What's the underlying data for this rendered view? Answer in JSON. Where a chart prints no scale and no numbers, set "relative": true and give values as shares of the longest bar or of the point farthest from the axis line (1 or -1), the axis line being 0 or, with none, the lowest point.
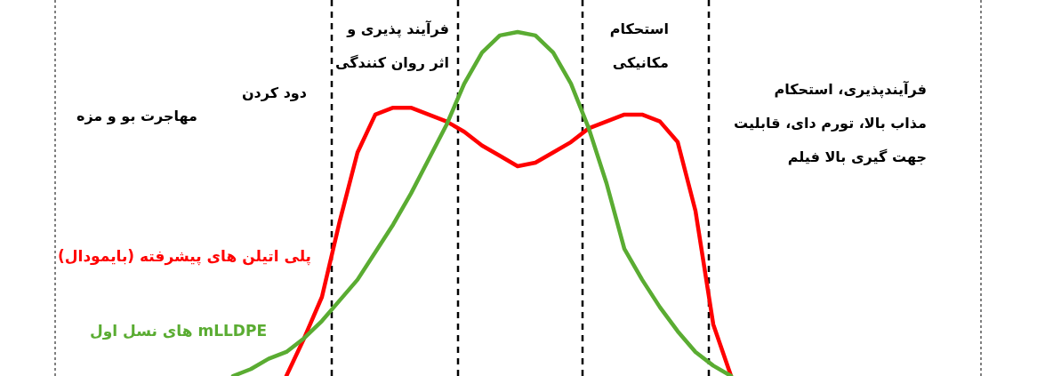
{
  "chart_data": {
    "type": "line",
    "relative": true,
    "categories": [
      null,
      null,
      null,
      null,
      null,
      null,
      null,
      null,
      null,
      null,
      null,
      null,
      null,
      null,
      null,
      null,
      null,
      null,
      null,
      null,
      null,
      null,
      null,
      null,
      null,
      null,
      null,
      null,
      null
    ],
    "series": [
      {
        "name": "پلی اتیلن های پیشرفته (بایمودال)",
        "color": "#ff0000",
        "values": [
          null,
          null,
          null,
          0,
          0.11,
          0.23,
          0.45,
          0.65,
          0.76,
          0.78,
          0.78,
          0.76,
          0.74,
          0.71,
          0.67,
          0.64,
          0.61,
          0.62,
          0.65,
          0.68,
          0.72,
          0.74,
          0.76,
          0.76,
          0.74,
          0.68,
          0.48,
          0.15,
          0
        ]
      },
      {
        "name": "mLLDPE های نسل اول",
        "color": "#5aac32",
        "values": [
          0,
          0.02,
          0.05,
          0.07,
          0.11,
          0.16,
          0.22,
          0.28,
          0.36,
          0.44,
          0.53,
          0.63,
          0.73,
          0.85,
          0.94,
          0.99,
          1,
          0.99,
          0.94,
          0.85,
          0.72,
          0.56,
          0.37,
          0.28,
          0.2,
          0.13,
          0.07,
          0.03,
          0
        ]
      }
    ],
    "annotations": [
      "مهاجرت بو و مزه",
      "دود کردن",
      "فرآیند پذیری و\nاثر روان کنندگی",
      "استحکام\nمکانیکی",
      "فرآیندپذیری، استحکام\nمذاب بالا، تورم دای، قابلیت\nجهت گیری بالا فیلم"
    ],
    "legend": false,
    "marker": "none",
    "line_style": "solid"
  }
}
